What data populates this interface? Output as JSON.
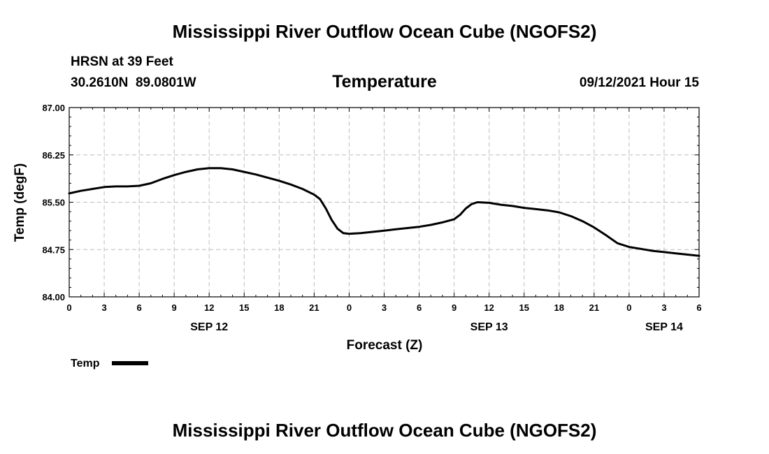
{
  "chart_data": {
    "type": "line",
    "title": "Mississippi River Outflow Ocean Cube (NGOFS2)",
    "footer_title": "Mississippi River Outflow Ocean Cube (NGOFS2)",
    "station": "HRSN at 39 Feet",
    "coords": "30.2610N  89.0801W",
    "subtitle": "Temperature",
    "datetime": "09/12/2021 Hour 15",
    "xlabel": "Forecast (Z)",
    "ylabel": "Temp (degF)",
    "ylim": [
      84.0,
      87.0
    ],
    "y_ticks": [
      "84.00",
      "84.75",
      "85.50",
      "86.25",
      "87.00"
    ],
    "y_tick_values": [
      84.0,
      84.75,
      85.5,
      86.25,
      87.0
    ],
    "xlim": [
      0,
      54
    ],
    "x_tick_values": [
      0,
      3,
      6,
      9,
      12,
      15,
      18,
      21,
      24,
      27,
      30,
      33,
      36,
      39,
      42,
      45,
      48,
      51,
      54
    ],
    "x_tick_labels": [
      "0",
      "3",
      "6",
      "9",
      "12",
      "15",
      "18",
      "21",
      "0",
      "3",
      "6",
      "9",
      "12",
      "15",
      "18",
      "21",
      "0",
      "3",
      "6"
    ],
    "day_labels": [
      {
        "hour": 12,
        "label": "SEP 12"
      },
      {
        "hour": 36,
        "label": "SEP 13"
      },
      {
        "hour": 51,
        "label": "SEP 14"
      }
    ],
    "grid": true,
    "legend_position": "bottom-left",
    "series": [
      {
        "name": "Temp",
        "color": "#000000",
        "x": [
          0,
          1,
          2,
          3,
          4,
          5,
          6,
          7,
          8,
          9,
          10,
          11,
          12,
          13,
          14,
          15,
          16,
          17,
          18,
          19,
          20,
          21,
          21.5,
          22,
          22.5,
          23,
          23.5,
          24,
          25,
          26,
          27,
          28,
          29,
          30,
          31,
          32,
          33,
          33.5,
          34,
          34.5,
          35,
          36,
          37,
          38,
          39,
          40,
          41,
          42,
          43,
          44,
          45,
          46,
          47,
          48,
          49,
          50,
          51,
          52,
          53,
          54
        ],
        "values": [
          85.64,
          85.68,
          85.71,
          85.74,
          85.75,
          85.75,
          85.76,
          85.8,
          85.87,
          85.93,
          85.98,
          86.02,
          86.04,
          86.04,
          86.02,
          85.98,
          85.94,
          85.89,
          85.84,
          85.78,
          85.71,
          85.62,
          85.55,
          85.4,
          85.22,
          85.08,
          85.01,
          85.0,
          85.01,
          85.03,
          85.05,
          85.07,
          85.09,
          85.11,
          85.14,
          85.18,
          85.23,
          85.3,
          85.4,
          85.47,
          85.5,
          85.49,
          85.46,
          85.44,
          85.41,
          85.39,
          85.37,
          85.34,
          85.28,
          85.2,
          85.1,
          84.98,
          84.85,
          84.79,
          84.76,
          84.73,
          84.71,
          84.69,
          84.67,
          84.65
        ]
      }
    ]
  }
}
